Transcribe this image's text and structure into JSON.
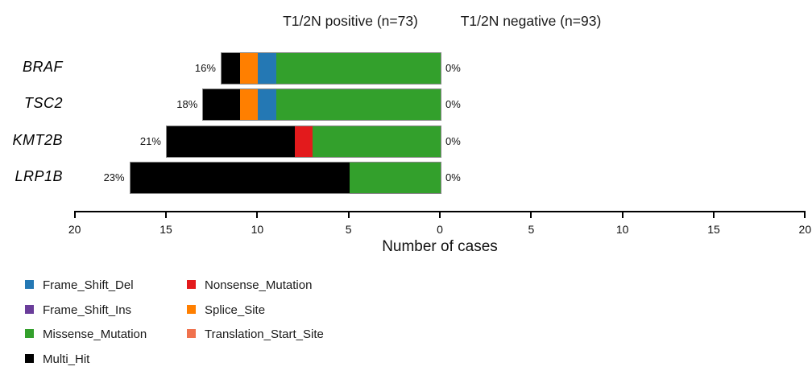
{
  "titles": {
    "left_cohort": "T1/2N positive (n=73)",
    "right_cohort": "T1/2N negative (n=93)"
  },
  "xlabel": "Number of cases",
  "axis": {
    "tick_labels": [
      "20",
      "15",
      "10",
      "5",
      "0",
      "5",
      "10",
      "15",
      "20"
    ],
    "max_cases": 20
  },
  "colors": {
    "Frame_Shift_Del": "#2478B4",
    "Frame_Shift_Ins": "#6A3D9A",
    "Missense_Mutation": "#33A02C",
    "Multi_Hit": "#000000",
    "Nonsense_Mutation": "#E31A1C",
    "Splice_Site": "#FF7F00",
    "Translation_Start_Site": "#F0724E"
  },
  "legend": {
    "items": [
      {
        "label": "Frame_Shift_Del",
        "color": "#2478B4"
      },
      {
        "label": "Frame_Shift_Ins",
        "color": "#6A3D9A"
      },
      {
        "label": "Missense_Mutation",
        "color": "#33A02C"
      },
      {
        "label": "Multi_Hit",
        "color": "#000000"
      },
      {
        "label": "Nonsense_Mutation",
        "color": "#E31A1C"
      },
      {
        "label": "Splice_Site",
        "color": "#FF7F00"
      },
      {
        "label": "Translation_Start_Site",
        "color": "#F0724E"
      }
    ]
  },
  "chart_data": {
    "type": "bar",
    "subtype": "mirrored-horizontal-stacked (maftools coBarplot)",
    "cohorts": [
      {
        "side": "left",
        "label": "T1/2N positive (n=73)",
        "n": 73
      },
      {
        "side": "right",
        "label": "T1/2N negative (n=93)",
        "n": 93
      }
    ],
    "xlabel": "Number of cases",
    "xlim_cases_each_side": [
      0,
      20
    ],
    "grid": false,
    "legend_position": "bottom-left",
    "genes": [
      {
        "name": "BRAF",
        "left_pct": "16%",
        "right_pct": "0%",
        "left_total_cases": 12,
        "right_total_cases": 0,
        "left_segments": [
          {
            "type": "Multi_Hit",
            "value": 1
          },
          {
            "type": "Splice_Site",
            "value": 1
          },
          {
            "type": "Frame_Shift_Del",
            "value": 1
          },
          {
            "type": "Missense_Mutation",
            "value": 9
          }
        ],
        "right_segments": []
      },
      {
        "name": "TSC2",
        "left_pct": "18%",
        "right_pct": "0%",
        "left_total_cases": 13,
        "right_total_cases": 0,
        "left_segments": [
          {
            "type": "Multi_Hit",
            "value": 2
          },
          {
            "type": "Splice_Site",
            "value": 1
          },
          {
            "type": "Frame_Shift_Del",
            "value": 1
          },
          {
            "type": "Missense_Mutation",
            "value": 9
          }
        ],
        "right_segments": []
      },
      {
        "name": "KMT2B",
        "left_pct": "21%",
        "right_pct": "0%",
        "left_total_cases": 15,
        "right_total_cases": 0,
        "left_segments": [
          {
            "type": "Multi_Hit",
            "value": 7
          },
          {
            "type": "Nonsense_Mutation",
            "value": 1
          },
          {
            "type": "Missense_Mutation",
            "value": 7
          }
        ],
        "right_segments": []
      },
      {
        "name": "LRP1B",
        "left_pct": "23%",
        "right_pct": "0%",
        "left_total_cases": 17,
        "right_total_cases": 0,
        "left_segments": [
          {
            "type": "Multi_Hit",
            "value": 12
          },
          {
            "type": "Missense_Mutation",
            "value": 5
          }
        ],
        "right_segments": []
      }
    ]
  }
}
